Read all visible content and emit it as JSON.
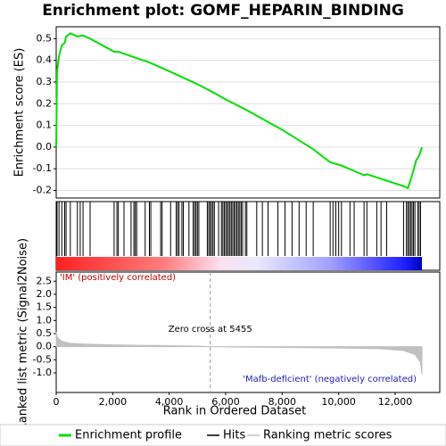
{
  "chart_data": [
    {
      "type": "line",
      "title": "Enrichment plot: GOMF_HEPARIN_BINDING",
      "y_label": "Enrichment score (ES)",
      "xlim": [
        0,
        13580
      ],
      "ylim": [
        -0.235,
        0.555
      ],
      "yticks": [
        0.5,
        0.4,
        0.3,
        0.2,
        0.1,
        {
          "value": 0,
          "label": "0.0"
        },
        -0.1,
        -0.2
      ],
      "grid": true,
      "series": [
        {
          "name": "Enrichment profile",
          "color": "#00e000",
          "x": [
            0,
            30,
            100,
            200,
            300,
            350,
            500,
            750,
            950,
            1200,
            2050,
            2200,
            2850,
            3300,
            4000,
            5000,
            5450,
            6000,
            6750,
            8000,
            9100,
            9700,
            10100,
            10900,
            11000,
            11350,
            12300,
            12450,
            12600,
            12750,
            12850,
            12950
          ],
          "values": [
            0,
            0.35,
            0.42,
            0.47,
            0.48,
            0.51,
            0.525,
            0.51,
            0.515,
            0.5,
            0.44,
            0.44,
            0.41,
            0.39,
            0.35,
            0.29,
            0.26,
            0.22,
            0.17,
            0.08,
            -0.01,
            -0.07,
            -0.085,
            -0.13,
            -0.125,
            -0.14,
            -0.18,
            -0.19,
            -0.13,
            -0.06,
            -0.04,
            0
          ]
        }
      ]
    },
    {
      "type": "rug",
      "xlim": [
        0,
        13580
      ],
      "series": [
        {
          "name": "Hits",
          "color": "#000000",
          "x": [
            30,
            100,
            200,
            300,
            350,
            500,
            750,
            850,
            950,
            1200,
            2050,
            2150,
            2200,
            2400,
            2650,
            2750,
            2800,
            2850,
            3150,
            3300,
            3350,
            3700,
            3750,
            4050,
            4250,
            4300,
            4350,
            4450,
            4500,
            4700,
            4850,
            4900,
            4950,
            5000,
            5050,
            5350,
            5400,
            5450,
            5500,
            5550,
            5600,
            5750,
            5850,
            5900,
            5950,
            6000,
            6050,
            6100,
            6150,
            6200,
            6250,
            6300,
            6350,
            6400,
            6450,
            6500,
            6550,
            6600,
            6700,
            6750,
            7100,
            7300,
            7500,
            7850,
            8100,
            8350,
            8600,
            8850,
            9100,
            9700,
            9800,
            9900,
            10000,
            10100,
            10400,
            10550,
            10900,
            11000,
            11350,
            11500,
            11700,
            12300,
            12400,
            12450,
            12500,
            12550,
            12600,
            12650,
            12700,
            12800,
            12850,
            12900
          ]
        }
      ],
      "annotations": [
        "'IM' (positively correlated)",
        "'Mafb-deficient' (negatively correlated)"
      ]
    },
    {
      "type": "area",
      "y_label": "Ranked list metric (Signal2Noise)",
      "x_label": "Rank in Ordered Dataset",
      "xlim": [
        0,
        13580
      ],
      "ylim": [
        -1.75,
        2.85
      ],
      "xticks": [
        0,
        {
          "value": 2000,
          "label": "2,000"
        },
        {
          "value": 4000,
          "label": "4,000"
        },
        {
          "value": 6000,
          "label": "6,000"
        },
        {
          "value": 8000,
          "label": "8,000"
        },
        {
          "value": 10000,
          "label": "10,000"
        },
        {
          "value": 12000,
          "label": "12,000"
        }
      ],
      "yticks": [
        2.5,
        {
          "value": 2,
          "label": "2.0"
        },
        1.5,
        {
          "value": 1,
          "label": "1.0"
        },
        0.5,
        {
          "value": 0,
          "label": "0.0"
        },
        -0.5,
        {
          "value": -1,
          "label": "-1.0"
        }
      ],
      "zero_cross": 5455,
      "zero_cross_label": "Zero cross at 5455",
      "series": [
        {
          "name": "Ranking metric scores",
          "color": "#c0c0c0",
          "x": [
            0,
            50,
            200,
            500,
            1000,
            2000,
            3000,
            4000,
            5000,
            5455,
            6000,
            8000,
            10000,
            11500,
            12300,
            12700,
            12900,
            12950
          ],
          "values": [
            0.55,
            0.35,
            0.2,
            0.13,
            0.1,
            0.07,
            0.05,
            0.04,
            0.02,
            0,
            -0.01,
            -0.03,
            -0.05,
            -0.08,
            -0.15,
            -0.3,
            -0.6,
            -1.05
          ]
        }
      ]
    }
  ]
}
